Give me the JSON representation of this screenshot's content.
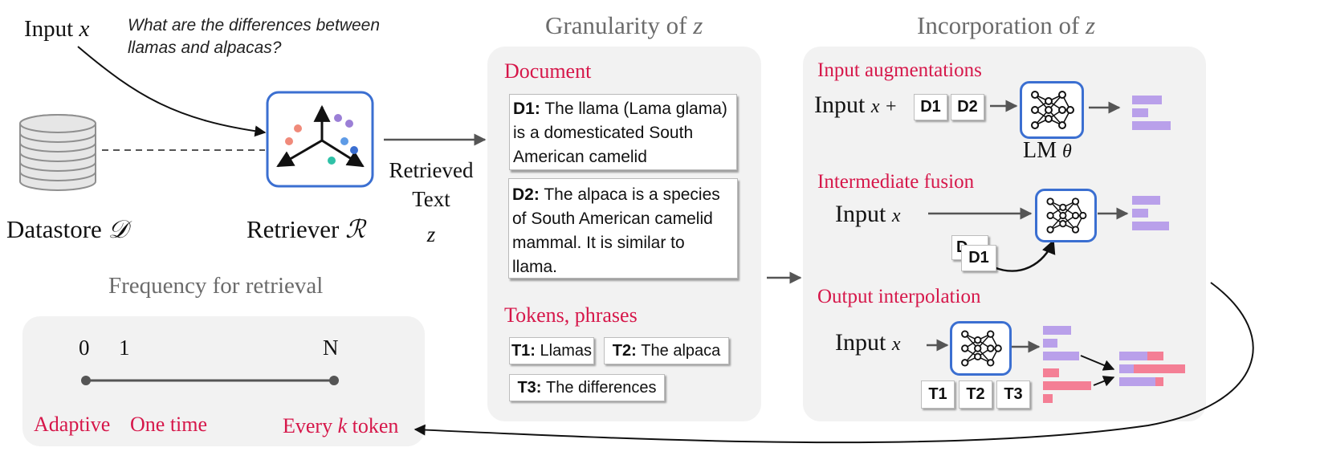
{
  "left": {
    "input_label": "Input",
    "input_var": "x",
    "question": "What are the differences between llamas and alpacas?",
    "datastore_label": "Datastore",
    "datastore_symbol": "𝒟",
    "retriever_label": "Retriever",
    "retriever_symbol": "ℛ",
    "retrieved_text_line1": "Retrieved",
    "retrieved_text_line2": "Text",
    "retrieved_var": "z"
  },
  "frequency": {
    "title": "Frequency for retrieval",
    "tick_0": "0",
    "tick_1": "1",
    "tick_n": "N",
    "label_adaptive": "Adaptive",
    "label_one_time": "One time",
    "label_every_prefix": "Every",
    "label_every_var": "k",
    "label_every_suffix": "token"
  },
  "granularity": {
    "title_prefix": "Granularity of",
    "title_var": "z",
    "document_heading": "Document",
    "d1_id": "D1:",
    "d1_text": "The llama (Lama glama) is a domesticated South American camelid",
    "d2_id": "D2:",
    "d2_text": "The alpaca is a species of South American camelid mammal. It is similar to llama.",
    "tokens_heading": "Tokens, phrases",
    "t1_id": "T1:",
    "t1_text": "Llamas",
    "t2_id": "T2:",
    "t2_text": "The alpaca",
    "t3_id": "T3:",
    "t3_text": "The differences"
  },
  "incorporation": {
    "title_prefix": "Incorporation of",
    "title_var": "z",
    "input_aug_heading": "Input augmentations",
    "aug_input": "Input",
    "aug_var": "x",
    "aug_plus": "+",
    "chip_d1": "D1",
    "chip_d2": "D2",
    "lm_label": "LM",
    "lm_symbol": "θ",
    "intermediate_heading": "Intermediate fusion",
    "inter_input": "Input",
    "inter_var": "x",
    "inter_chip_back": "D",
    "inter_chip_front": "D1",
    "output_heading": "Output interpolation",
    "out_input": "Input",
    "out_var": "x",
    "chip_t1": "T1",
    "chip_t2": "T2",
    "chip_t3": "T3"
  },
  "colors": {
    "accent_red": "#d6174a",
    "lm_blue": "#3b6fd1",
    "bar_purple": "#b9a0ea",
    "bar_pink": "#f47f95",
    "panel_gray": "#f2f2f2",
    "title_gray": "#6b6b6b"
  }
}
